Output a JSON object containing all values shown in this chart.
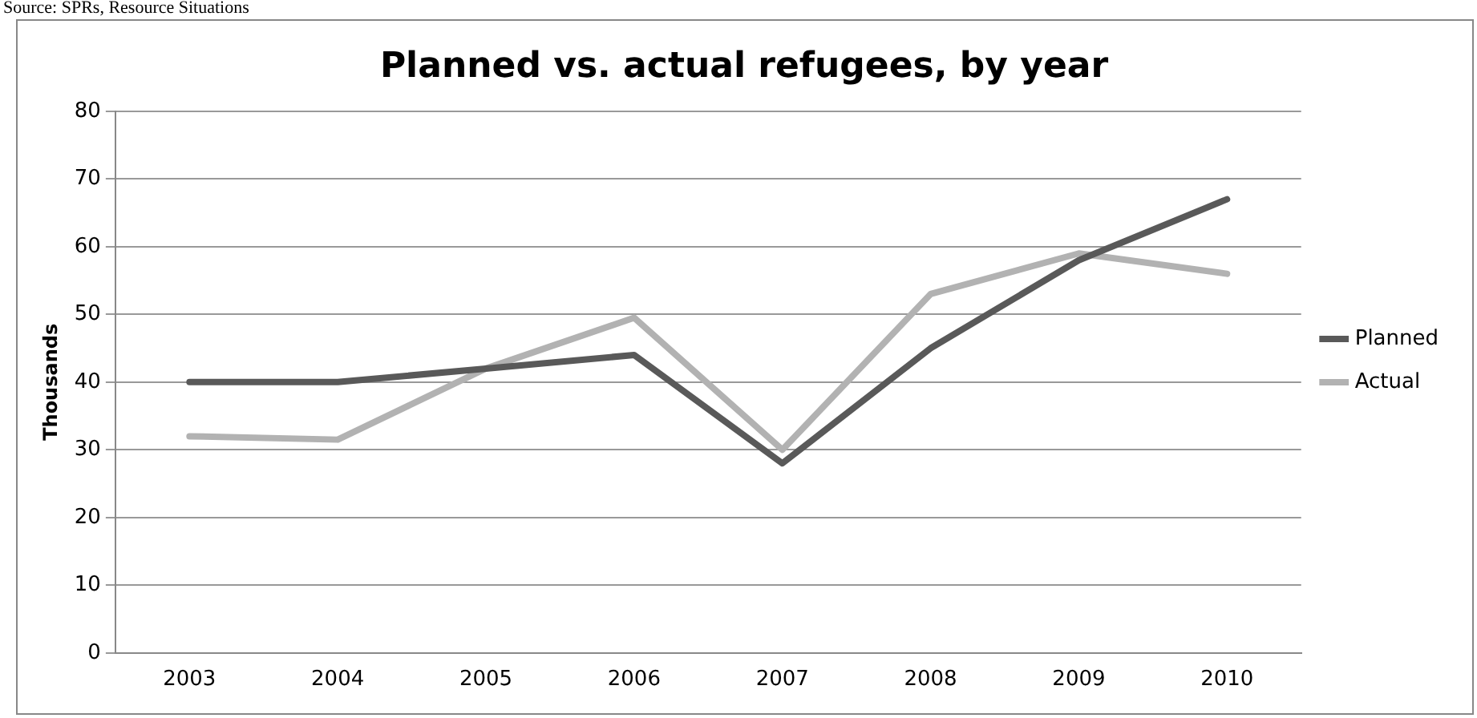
{
  "chart_data": {
    "type": "line",
    "title": "Planned vs. actual refugees, by year",
    "ylabel": "Thousands",
    "annotations": [
      "Source: SPRs, Resource Situations"
    ],
    "categories": [
      "2003",
      "2004",
      "2005",
      "2006",
      "2007",
      "2008",
      "2009",
      "2010"
    ],
    "series": [
      {
        "name": "Planned",
        "color": "#595959",
        "values": [
          40,
          40,
          42,
          44,
          28,
          45,
          58,
          67
        ]
      },
      {
        "name": "Actual",
        "color": "#b2b2b2",
        "values": [
          32,
          31.5,
          42,
          49.5,
          30,
          53,
          59,
          56
        ]
      }
    ],
    "ylim": [
      0,
      80
    ],
    "yticks": [
      0,
      10,
      20,
      30,
      40,
      50,
      60,
      70,
      80
    ],
    "grid": "y",
    "legend": "right",
    "marker": "none",
    "line_style": "solid"
  }
}
